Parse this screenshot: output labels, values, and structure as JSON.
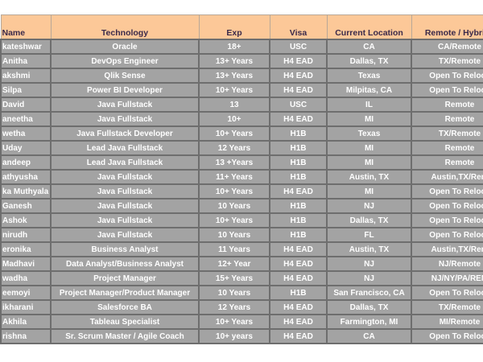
{
  "headers": [
    "Name",
    "Technology",
    "Exp",
    "Visa",
    "Current Location",
    "Remote / Hybrid /"
  ],
  "rows": [
    [
      "kateshwar",
      "Oracle",
      "18+",
      "USC",
      "CA",
      "CA/Remote"
    ],
    [
      "Anitha",
      "DevOps Engineer",
      "13+ Years",
      "H4 EAD",
      "Dallas, TX",
      "TX/Remote"
    ],
    [
      "akshmi",
      "Qlik Sense",
      "13+ Years",
      "H4 EAD",
      "Texas",
      "Open To Reloca"
    ],
    [
      "Silpa",
      "Power BI Developer",
      "10+ Years",
      "H4 EAD",
      "Milpitas, CA",
      "Open To Reloca"
    ],
    [
      "David",
      "Java Fullstack",
      "13",
      "USC",
      "IL",
      "Remote"
    ],
    [
      "aneetha",
      "Java Fullstack",
      "10+",
      "H4 EAD",
      "MI",
      "Remote"
    ],
    [
      "wetha",
      "Java Fullstack Developer",
      "10+ Years",
      "H1B",
      "Texas",
      "TX/Remote"
    ],
    [
      "Uday",
      "Lead Java Fullstack",
      "12 Years",
      "H1B",
      "MI",
      "Remote"
    ],
    [
      "andeep",
      "Lead Java Fullstack",
      "13 +Years",
      "H1B",
      "MI",
      "Remote"
    ],
    [
      "athyusha",
      "Java Fullstack",
      "11+ Years",
      "H1B",
      "Austin, TX",
      "Austin,TX/Rem"
    ],
    [
      "ka Muthyala",
      "Java Fullstack",
      "10+ Years",
      "H4 EAD",
      "MI",
      "Open To Reloca"
    ],
    [
      "Ganesh",
      "Java Fullstack",
      "10 Years",
      "H1B",
      "NJ",
      "Open To Reloca"
    ],
    [
      "Ashok",
      "Java Fullstack",
      "10+ Years",
      "H1B",
      "Dallas, TX",
      "Open To Reloca"
    ],
    [
      "nirudh",
      "Java Fullstack",
      "10 Years",
      "H1B",
      "FL",
      "Open To Reloca"
    ],
    [
      "eronika",
      "Business Analyst",
      "11 Years",
      "H4 EAD",
      "Austin, TX",
      "Austin,TX/Rem"
    ],
    [
      "Madhavi",
      "Data Analyst/Business Analyst",
      "12+ Year",
      "H4 EAD",
      "NJ",
      "NJ/Remote"
    ],
    [
      "wadha",
      "Project Manager",
      "15+ Years",
      "H4 EAD",
      "NJ",
      "NJ/NY/PA/REM"
    ],
    [
      "eemoyi",
      "Project Manager/Product Manager",
      "10 Years",
      "H1B",
      "San Francisco, CA",
      "Open To Reloca"
    ],
    [
      "ikharani",
      "Salesforce BA",
      "12 Years",
      "H4 EAD",
      "Dallas, TX",
      "TX/Remote"
    ],
    [
      "Akhila",
      "Tableau Specialist",
      "10+ Years",
      "H4 EAD",
      "Farmington, MI",
      "MI/Remote"
    ],
    [
      "rishna",
      "Sr. Scrum Master / Agile Coach",
      "10+ years",
      "H4 EAD",
      "CA",
      "Open To Reloca"
    ]
  ]
}
